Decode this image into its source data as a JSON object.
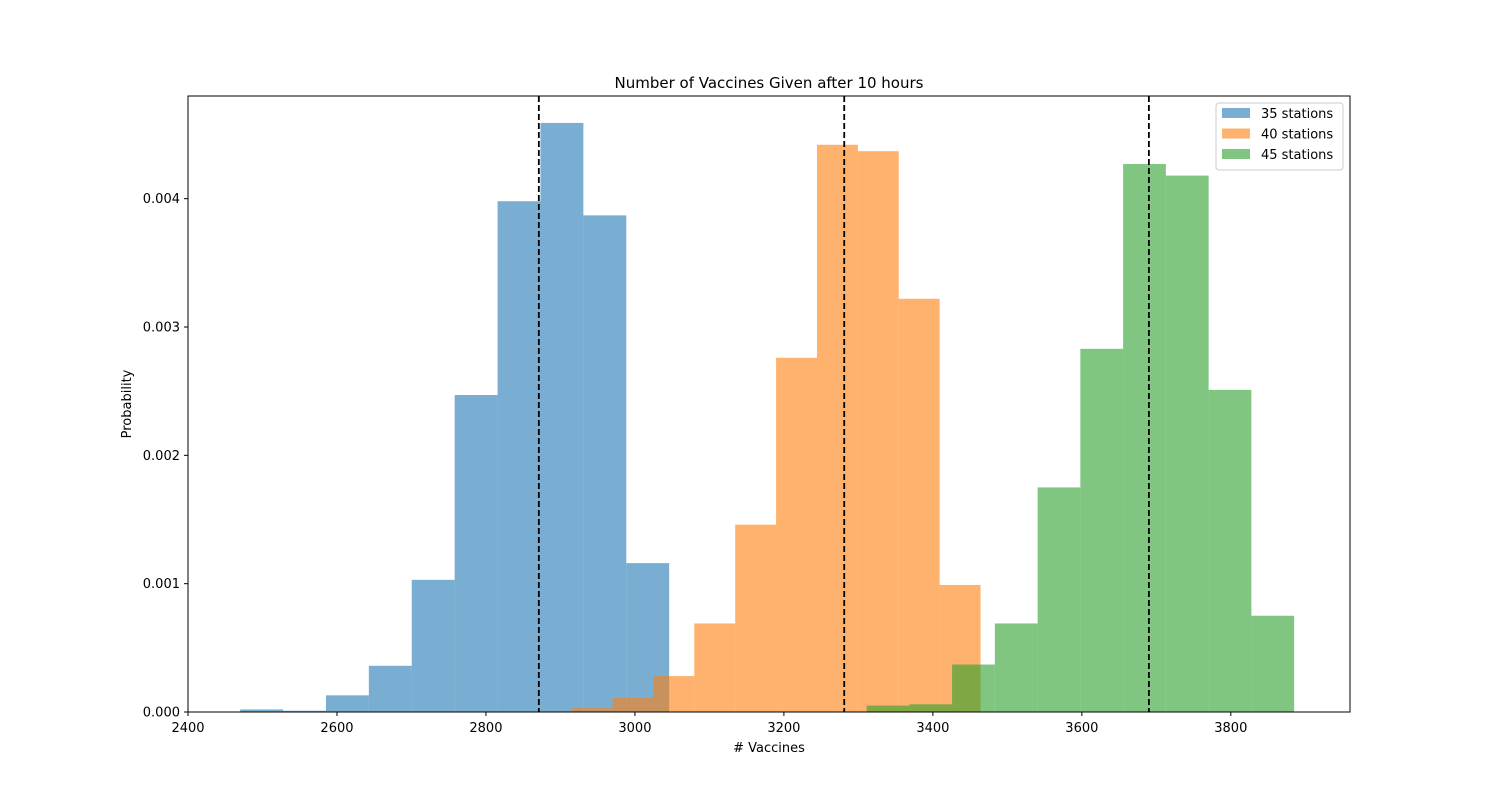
{
  "chart_data": {
    "type": "bar",
    "title": "Number of Vaccines Given after 10 hours",
    "xlabel": "# Vaccines",
    "ylabel": "Probability",
    "xlim": [
      2400,
      3960
    ],
    "ylim": [
      0,
      0.0048
    ],
    "xticks": [
      "2400",
      "2600",
      "2800",
      "3000",
      "3200",
      "3400",
      "3600",
      "3800"
    ],
    "xtick_values": [
      2400,
      2600,
      2800,
      3000,
      3200,
      3400,
      3600,
      3800
    ],
    "yticks": [
      "0.000",
      "0.001",
      "0.002",
      "0.003",
      "0.004"
    ],
    "ytick_values": [
      0,
      0.001,
      0.002,
      0.003,
      0.004
    ],
    "grid": false,
    "legend_position": "top-right",
    "series": [
      {
        "name": "35 stations",
        "color": "#1f77b4",
        "opacity": 0.6,
        "bin_start": 2470,
        "bin_width": 57.6,
        "values": [
          2e-05,
          1e-05,
          0.00013,
          0.00036,
          0.00103,
          0.00247,
          0.00398,
          0.00459,
          0.00387,
          0.00116
        ],
        "mean": 2871
      },
      {
        "name": "40 stations",
        "color": "#ff7f0e",
        "opacity": 0.6,
        "bin_start": 2915,
        "bin_width": 54.9,
        "values": [
          3e-05,
          0.00011,
          0.00028,
          0.00069,
          0.00146,
          0.00276,
          0.00442,
          0.00437,
          0.00322,
          0.00099
        ],
        "mean": 3281
      },
      {
        "name": "45 stations",
        "color": "#2ca02c",
        "opacity": 0.6,
        "bin_start": 3311,
        "bin_width": 57.4,
        "values": [
          5e-05,
          6e-05,
          0.00037,
          0.00069,
          0.00175,
          0.00283,
          0.00427,
          0.00418,
          0.00251,
          0.00075
        ],
        "mean": 3690
      }
    ]
  }
}
